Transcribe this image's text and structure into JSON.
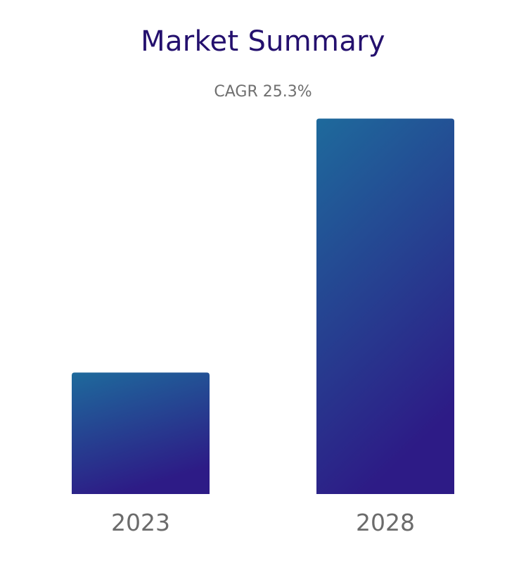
{
  "colors": {
    "title": "#24106e",
    "subtitle": "#6f6f6f",
    "bar_top": "#1e6a9c",
    "bar_bottom": "#2d1b86",
    "tick_label": "#6b6b6b"
  },
  "chart_data": {
    "type": "bar",
    "title": "Market Summary",
    "subtitle": "CAGR 25.3%",
    "categories": [
      "2023",
      "2028"
    ],
    "values": [
      1,
      3.09
    ],
    "ylim": [
      0,
      3.4
    ],
    "grid": false,
    "legend": "none"
  }
}
